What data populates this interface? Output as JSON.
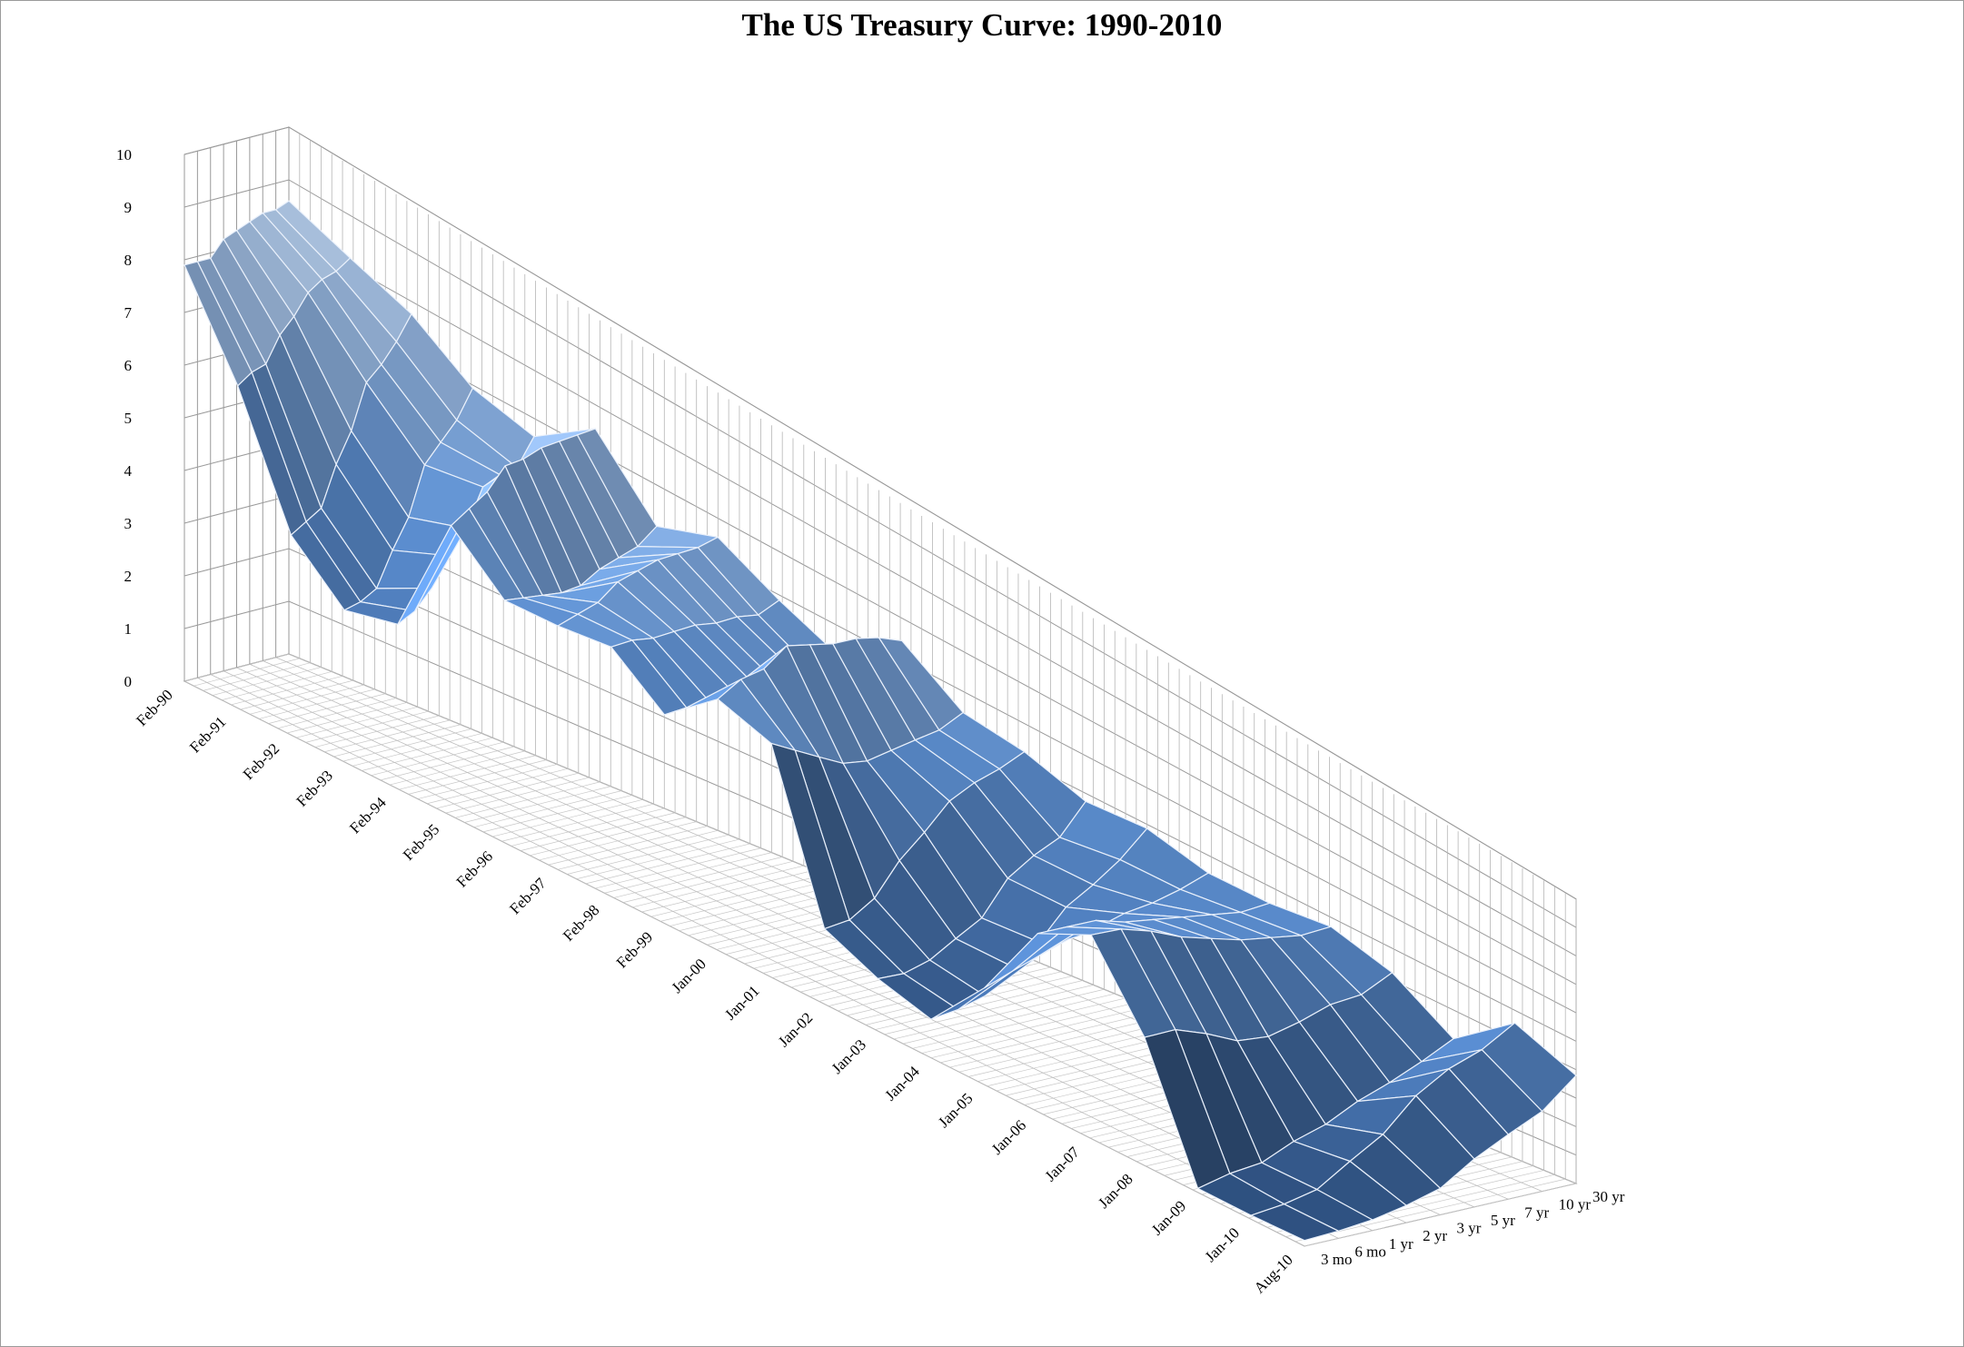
{
  "chart_data": {
    "type": "surface3d",
    "title": "The US Treasury Curve: 1990-2010",
    "z_axis": {
      "min": 0,
      "max": 10,
      "step": 1,
      "ticks": [
        "0",
        "1",
        "2",
        "3",
        "4",
        "5",
        "6",
        "7",
        "8",
        "9",
        "10"
      ]
    },
    "x_axis_dates": [
      "Feb-90",
      "Feb-91",
      "Feb-92",
      "Feb-93",
      "Feb-94",
      "Feb-95",
      "Feb-96",
      "Feb-97",
      "Feb-98",
      "Feb-99",
      "Jan-00",
      "Jan-01",
      "Jan-02",
      "Jan-03",
      "Jan-04",
      "Jan-05",
      "Jan-06",
      "Jan-07",
      "Jan-08",
      "Jan-09",
      "Jan-10",
      "Aug-10"
    ],
    "maturities": [
      "3 mo",
      "6 mo",
      "1 yr",
      "2 yr",
      "3 yr",
      "5 yr",
      "7 yr",
      "10 yr",
      "30 yr"
    ],
    "maturity_years": [
      0.25,
      0.5,
      1,
      2,
      3,
      5,
      7,
      10,
      30
    ],
    "yields_percent": [
      [
        7.9,
        7.9,
        7.9,
        8.2,
        8.3,
        8.4,
        8.5,
        8.5,
        8.6
      ],
      [
        6.2,
        6.4,
        6.5,
        7.0,
        7.3,
        7.7,
        7.9,
        8.0,
        8.2
      ],
      [
        3.9,
        4.1,
        4.3,
        5.1,
        5.7,
        6.6,
        6.9,
        7.3,
        7.8
      ],
      [
        3.0,
        3.1,
        3.3,
        4.0,
        4.6,
        5.6,
        6.0,
        6.4,
        7.0
      ],
      [
        3.3,
        3.5,
        3.9,
        4.5,
        5.0,
        5.8,
        6.0,
        6.1,
        6.7
      ],
      [
        5.9,
        6.2,
        6.5,
        7.0,
        7.1,
        7.3,
        7.4,
        7.5,
        7.6
      ],
      [
        5.0,
        5.0,
        5.0,
        5.0,
        5.1,
        5.4,
        5.6,
        5.8,
        6.2
      ],
      [
        5.1,
        5.3,
        5.5,
        5.9,
        6.1,
        6.3,
        6.4,
        6.5,
        6.7
      ],
      [
        5.3,
        5.4,
        5.4,
        5.5,
        5.6,
        5.6,
        5.7,
        5.7,
        6.0
      ],
      [
        4.5,
        4.6,
        4.7,
        4.9,
        5.0,
        5.0,
        5.1,
        5.0,
        5.4
      ],
      [
        5.5,
        5.9,
        6.1,
        6.6,
        6.6,
        6.6,
        6.7,
        6.7,
        6.6
      ],
      [
        5.2,
        5.0,
        4.8,
        4.6,
        4.6,
        4.8,
        5.0,
        5.2,
        5.6
      ],
      [
        1.7,
        1.8,
        2.2,
        3.0,
        3.6,
        4.3,
        4.7,
        5.0,
        5.4
      ],
      [
        1.2,
        1.2,
        1.4,
        1.8,
        2.2,
        3.1,
        3.6,
        4.0,
        4.9
      ],
      [
        0.9,
        1.0,
        1.2,
        1.8,
        2.3,
        3.1,
        3.6,
        4.2,
        5.0
      ],
      [
        2.3,
        2.6,
        2.9,
        3.2,
        3.4,
        3.7,
        3.9,
        4.2,
        4.6
      ],
      [
        4.3,
        4.4,
        4.5,
        4.4,
        4.4,
        4.4,
        4.4,
        4.4,
        4.6
      ],
      [
        5.0,
        5.1,
        5.0,
        4.8,
        4.7,
        4.6,
        4.6,
        4.6,
        4.8
      ],
      [
        3.2,
        3.3,
        3.1,
        2.8,
        2.8,
        3.1,
        3.5,
        3.7,
        4.3
      ],
      [
        0.1,
        0.3,
        0.4,
        0.8,
        1.1,
        1.6,
        2.0,
        2.5,
        3.1
      ],
      [
        0.1,
        0.2,
        0.4,
        1.0,
        1.6,
        2.6,
        3.3,
        3.8,
        4.6
      ],
      [
        0.15,
        0.2,
        0.3,
        0.5,
        0.8,
        1.5,
        2.1,
        2.7,
        3.8
      ]
    ],
    "grid": true,
    "legend": "none",
    "colors": {
      "surface_low": "#2d4f7e",
      "surface_mid": "#5b8ccc",
      "surface_high": "#dbe7f5",
      "mesh_line": "#e9f0fb",
      "grid_line": "#9a9a9a",
      "axis_text": "#000000"
    }
  }
}
